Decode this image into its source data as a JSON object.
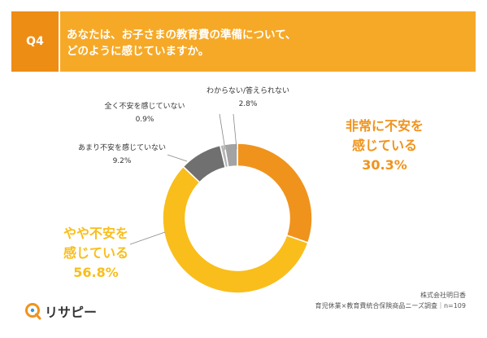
{
  "header": {
    "q_label": "Q4",
    "question": "あなたは、お子さまの教育費の準備について、\nどのように感じていますか。"
  },
  "chart_data": {
    "type": "pie",
    "categories": [
      "非常に不安を感じている",
      "やや不安を感じている",
      "あまり不安を感じていない",
      "全く不安を感じていない",
      "わからない/答えられない"
    ],
    "values": [
      30.3,
      56.8,
      9.2,
      0.9,
      2.8
    ],
    "value_labels": [
      "30.3%",
      "56.8%",
      "9.2%",
      "0.9%",
      "2.8%"
    ],
    "colors": [
      "#F0931C",
      "#F9BE1B",
      "#707070",
      "#B5B5B5",
      "#A3A3A3"
    ],
    "label_colors": [
      "#F0931C",
      "#F9BE1B",
      "#333333",
      "#333333",
      "#333333"
    ],
    "label_lines": [
      [
        "非常に不安を",
        "感じている"
      ],
      [
        "やや不安を",
        "感じている"
      ],
      [
        "あまり不安を感じていない"
      ],
      [
        "全く不安を感じていない"
      ],
      [
        "わからない/答えられない"
      ]
    ],
    "donut": true
  },
  "footer": {
    "company": "株式会社明日香",
    "survey": "育児休業×教育費統合保険商品ニーズ調査｜n=109"
  },
  "logo": {
    "text": "リサピー"
  }
}
